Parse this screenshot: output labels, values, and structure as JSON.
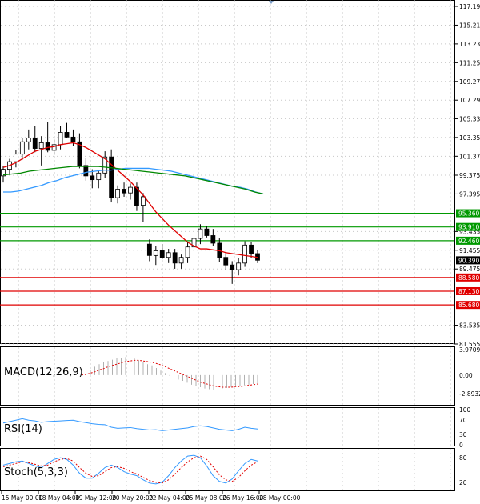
{
  "chart_data": {
    "type": "candlestick",
    "price_axis": {
      "ticks": [
        "117.195",
        "115.215",
        "113.235",
        "111.255",
        "109.275",
        "107.295",
        "105.335",
        "103.355",
        "101.375",
        "99.375",
        "97.395",
        "93.435",
        "91.455",
        "89.475",
        "83.535",
        "81.555"
      ],
      "current_price": "90.390"
    },
    "levels": [
      {
        "label": "95.360",
        "value": 95.36,
        "color": "#009900"
      },
      {
        "label": "93.910",
        "value": 93.91,
        "color": "#009900"
      },
      {
        "label": "92.460",
        "value": 92.46,
        "color": "#009900"
      },
      {
        "label": "88.580",
        "value": 88.58,
        "color": "#e00000"
      },
      {
        "label": "87.130",
        "value": 87.13,
        "color": "#e00000"
      },
      {
        "label": "85.680",
        "value": 85.68,
        "color": "#e00000"
      }
    ],
    "time_axis": {
      "labels": [
        "15 May 00:00",
        "18 May 04:00",
        "19 May 12:00",
        "20 May 20:00",
        "22 May 04:00",
        "25 May 08:00",
        "26 May 16:00",
        "28 May 00:00"
      ]
    },
    "candles": [
      {
        "o": 99.3,
        "h": 100.3,
        "l": 98.6,
        "c": 100.0
      },
      {
        "o": 100.0,
        "h": 101.1,
        "l": 99.4,
        "c": 100.8
      },
      {
        "o": 100.8,
        "h": 102.0,
        "l": 100.2,
        "c": 101.6
      },
      {
        "o": 101.6,
        "h": 103.3,
        "l": 101.0,
        "c": 102.9
      },
      {
        "o": 102.9,
        "h": 104.2,
        "l": 102.1,
        "c": 103.3
      },
      {
        "o": 103.3,
        "h": 104.6,
        "l": 101.8,
        "c": 102.2
      },
      {
        "o": 102.2,
        "h": 103.5,
        "l": 100.4,
        "c": 102.8
      },
      {
        "o": 102.8,
        "h": 105.0,
        "l": 101.8,
        "c": 102.0
      },
      {
        "o": 102.0,
        "h": 103.2,
        "l": 101.5,
        "c": 102.6
      },
      {
        "o": 102.6,
        "h": 104.6,
        "l": 102.1,
        "c": 103.9
      },
      {
        "o": 103.9,
        "h": 104.9,
        "l": 103.3,
        "c": 103.4
      },
      {
        "o": 103.4,
        "h": 104.2,
        "l": 102.5,
        "c": 102.9
      },
      {
        "o": 102.9,
        "h": 103.8,
        "l": 100.1,
        "c": 100.4
      },
      {
        "o": 100.4,
        "h": 101.2,
        "l": 98.8,
        "c": 99.3
      },
      {
        "o": 99.3,
        "h": 100.0,
        "l": 98.0,
        "c": 98.9
      },
      {
        "o": 98.9,
        "h": 99.9,
        "l": 98.0,
        "c": 99.6
      },
      {
        "o": 99.6,
        "h": 101.9,
        "l": 99.1,
        "c": 101.3
      },
      {
        "o": 101.3,
        "h": 102.1,
        "l": 96.5,
        "c": 97.0
      },
      {
        "o": 97.0,
        "h": 98.3,
        "l": 96.4,
        "c": 97.9
      },
      {
        "o": 97.9,
        "h": 98.6,
        "l": 97.1,
        "c": 97.5
      },
      {
        "o": 97.5,
        "h": 98.5,
        "l": 96.8,
        "c": 98.1
      },
      {
        "o": 98.1,
        "h": 98.6,
        "l": 95.6,
        "c": 96.2
      },
      {
        "o": 96.2,
        "h": 97.5,
        "l": 94.4,
        "c": 97.1
      },
      {
        "o": 92.1,
        "h": 92.6,
        "l": 90.3,
        "c": 90.9
      },
      {
        "o": 90.9,
        "h": 91.9,
        "l": 89.9,
        "c": 91.4
      },
      {
        "o": 91.4,
        "h": 92.1,
        "l": 90.5,
        "c": 90.7
      },
      {
        "o": 90.7,
        "h": 91.6,
        "l": 90.1,
        "c": 91.2
      },
      {
        "o": 91.2,
        "h": 91.6,
        "l": 89.5,
        "c": 90.1
      },
      {
        "o": 90.1,
        "h": 91.0,
        "l": 89.5,
        "c": 90.7
      },
      {
        "o": 90.7,
        "h": 92.3,
        "l": 90.1,
        "c": 91.8
      },
      {
        "o": 91.8,
        "h": 93.1,
        "l": 91.3,
        "c": 92.7
      },
      {
        "o": 92.7,
        "h": 94.2,
        "l": 92.1,
        "c": 93.7
      },
      {
        "o": 93.7,
        "h": 94.0,
        "l": 92.8,
        "c": 93.0
      },
      {
        "o": 93.0,
        "h": 93.7,
        "l": 91.9,
        "c": 92.2
      },
      {
        "o": 92.2,
        "h": 92.7,
        "l": 90.2,
        "c": 90.7
      },
      {
        "o": 90.7,
        "h": 91.2,
        "l": 89.4,
        "c": 89.9
      },
      {
        "o": 89.9,
        "h": 90.3,
        "l": 87.9,
        "c": 89.4
      },
      {
        "o": 89.4,
        "h": 90.6,
        "l": 88.8,
        "c": 90.1
      },
      {
        "o": 90.1,
        "h": 92.4,
        "l": 89.7,
        "c": 92.0
      },
      {
        "o": 92.0,
        "h": 92.3,
        "l": 90.6,
        "c": 91.1
      },
      {
        "o": 91.1,
        "h": 91.5,
        "l": 90.1,
        "c": 90.4
      }
    ],
    "moving_averages": [
      {
        "color": "#e00000",
        "values": [
          100.2,
          100.4,
          100.7,
          101.1,
          101.5,
          101.9,
          102.1,
          102.3,
          102.4,
          102.6,
          102.7,
          102.8,
          102.6,
          102.3,
          101.9,
          101.5,
          101.1,
          100.5,
          99.9,
          99.3,
          98.7,
          98.0,
          97.3,
          96.4,
          95.5,
          94.8,
          94.1,
          93.5,
          92.9,
          92.3,
          91.9,
          91.6,
          91.6,
          91.5,
          91.4,
          91.2,
          91.1,
          91.0,
          90.9,
          90.8,
          90.7
        ]
      },
      {
        "color": "#3399ff",
        "values": [
          97.6,
          97.6,
          97.7,
          97.9,
          98.1,
          98.3,
          98.6,
          98.8,
          99.1,
          99.3,
          99.5,
          99.7,
          99.8,
          99.9,
          99.9,
          100.0,
          100.1,
          100.1,
          100.1,
          100.1,
          100.0,
          99.9,
          99.8,
          99.6,
          99.4,
          99.2,
          99.0,
          98.8,
          98.6,
          98.4,
          98.2,
          98.1,
          97.9,
          97.6,
          97.4
        ]
      },
      {
        "color": "#008800",
        "values": [
          99.4,
          99.5,
          99.6,
          99.8,
          99.9,
          100.0,
          100.1,
          100.2,
          100.3,
          100.3,
          100.3,
          100.3,
          100.2,
          100.1,
          100.0,
          99.9,
          99.8,
          99.7,
          99.6,
          99.5,
          99.4,
          99.3,
          99.1,
          98.9,
          98.7,
          98.5,
          98.3,
          98.1,
          97.9,
          97.6,
          97.4
        ]
      }
    ],
    "macd": {
      "label": "MACD(12,26,9)",
      "ticks": [
        "3.9709",
        "0.00",
        "-2.8932"
      ],
      "histogram": [
        0.0,
        0.3,
        0.8,
        1.3,
        1.7,
        2.0,
        2.2,
        2.4,
        2.6,
        2.7,
        2.8,
        2.8,
        2.6,
        2.3,
        2.0,
        1.7,
        1.5,
        1.1,
        0.7,
        0.3,
        -0.1,
        -0.4,
        -0.7,
        -0.9,
        -1.2,
        -1.5,
        -1.7,
        -1.9,
        -2.1,
        -2.2,
        -2.3,
        -2.2,
        -2.1,
        -2.0,
        -1.9,
        -1.8,
        -1.7,
        -1.6,
        -1.5,
        -1.4,
        -1.3
      ],
      "signal": [
        0.0,
        0.1,
        0.3,
        0.5,
        0.8,
        1.0,
        1.3,
        1.5,
        1.7,
        1.9,
        2.1,
        2.2,
        2.3,
        2.3,
        2.2,
        2.1,
        2.0,
        1.8,
        1.6,
        1.3,
        1.0,
        0.7,
        0.4,
        0.1,
        -0.2,
        -0.5,
        -0.8,
        -1.1,
        -1.3,
        -1.5,
        -1.7,
        -1.8,
        -1.9,
        -1.9,
        -1.9,
        -1.8,
        -1.8,
        -1.7,
        -1.6,
        -1.5,
        -1.4
      ]
    },
    "rsi": {
      "label": "RSI(14)",
      "ticks": [
        "100",
        "70",
        "30",
        "0"
      ],
      "values": [
        62,
        66,
        70,
        74,
        70,
        68,
        64,
        66,
        67,
        68,
        69,
        70,
        66,
        63,
        60,
        58,
        57,
        50,
        47,
        48,
        49,
        46,
        44,
        42,
        43,
        40,
        42,
        44,
        46,
        48,
        52,
        54,
        52,
        48,
        44,
        42,
        40,
        44,
        50,
        47,
        45
      ]
    },
    "stoch": {
      "label": "Stoch(5,3,3)",
      "ticks": [
        "80",
        "20"
      ],
      "k": [
        62,
        66,
        70,
        72,
        66,
        60,
        56,
        66,
        76,
        80,
        76,
        62,
        42,
        30,
        30,
        42,
        56,
        62,
        56,
        46,
        40,
        36,
        26,
        18,
        16,
        20,
        36,
        56,
        72,
        84,
        86,
        80,
        60,
        36,
        22,
        18,
        28,
        48,
        66,
        76,
        72
      ],
      "d": [
        58,
        62,
        66,
        70,
        68,
        64,
        60,
        62,
        70,
        76,
        78,
        72,
        56,
        42,
        34,
        36,
        46,
        56,
        58,
        54,
        46,
        40,
        32,
        24,
        20,
        18,
        26,
        40,
        56,
        70,
        80,
        84,
        76,
        58,
        38,
        26,
        22,
        32,
        48,
        62,
        70
      ]
    }
  }
}
